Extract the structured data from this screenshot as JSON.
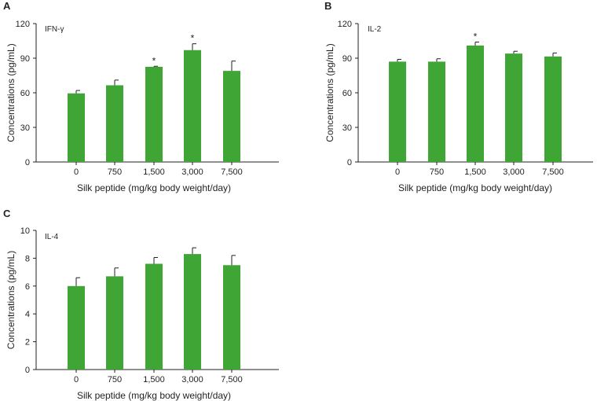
{
  "colors": {
    "bar": "#3fa535",
    "axis": "#231f20",
    "text": "#231f20"
  },
  "chart_data": [
    {
      "type": "bar",
      "panel_label": "A",
      "title": "IFN-γ",
      "xlabel": "Silk peptide (mg/kg body weight/day)",
      "ylabel": "Concentrations (pg/mL)",
      "ylim": [
        0,
        120
      ],
      "yticks": [
        "0",
        "30",
        "60",
        "90",
        "120"
      ],
      "categories": [
        "0",
        "750",
        "1,500",
        "3,000",
        "7,500"
      ],
      "values": [
        59.5,
        66.5,
        82.5,
        97,
        79
      ],
      "errors": [
        2.5,
        4.5,
        0.5,
        5.5,
        8.5
      ],
      "significance": [
        "",
        "",
        "*",
        "*",
        ""
      ]
    },
    {
      "type": "bar",
      "panel_label": "B",
      "title": "IL-2",
      "xlabel": "Silk peptide (mg/kg body weight/day)",
      "ylabel": "Concentrations (pg/mL)",
      "ylim": [
        0,
        120
      ],
      "yticks": [
        "0",
        "30",
        "60",
        "90",
        "120"
      ],
      "categories": [
        "0",
        "750",
        "1,500",
        "3,000",
        "7,500"
      ],
      "values": [
        87,
        87,
        101,
        94,
        91.5
      ],
      "errors": [
        2,
        2.5,
        3,
        2,
        3
      ],
      "significance": [
        "",
        "",
        "*",
        "",
        ""
      ]
    },
    {
      "type": "bar",
      "panel_label": "C",
      "title": "IL-4",
      "xlabel": "Silk peptide (mg/kg body weight/day)",
      "ylabel": "Concentrations (pg/mL)",
      "ylim": [
        0,
        10
      ],
      "yticks": [
        "0",
        "2",
        "4",
        "6",
        "8",
        "10"
      ],
      "categories": [
        "0",
        "750",
        "1,500",
        "3,000",
        "7,500"
      ],
      "values": [
        6,
        6.7,
        7.6,
        8.3,
        7.5
      ],
      "errors": [
        0.6,
        0.6,
        0.45,
        0.45,
        0.7
      ],
      "significance": [
        "",
        "",
        "",
        "",
        ""
      ]
    }
  ]
}
